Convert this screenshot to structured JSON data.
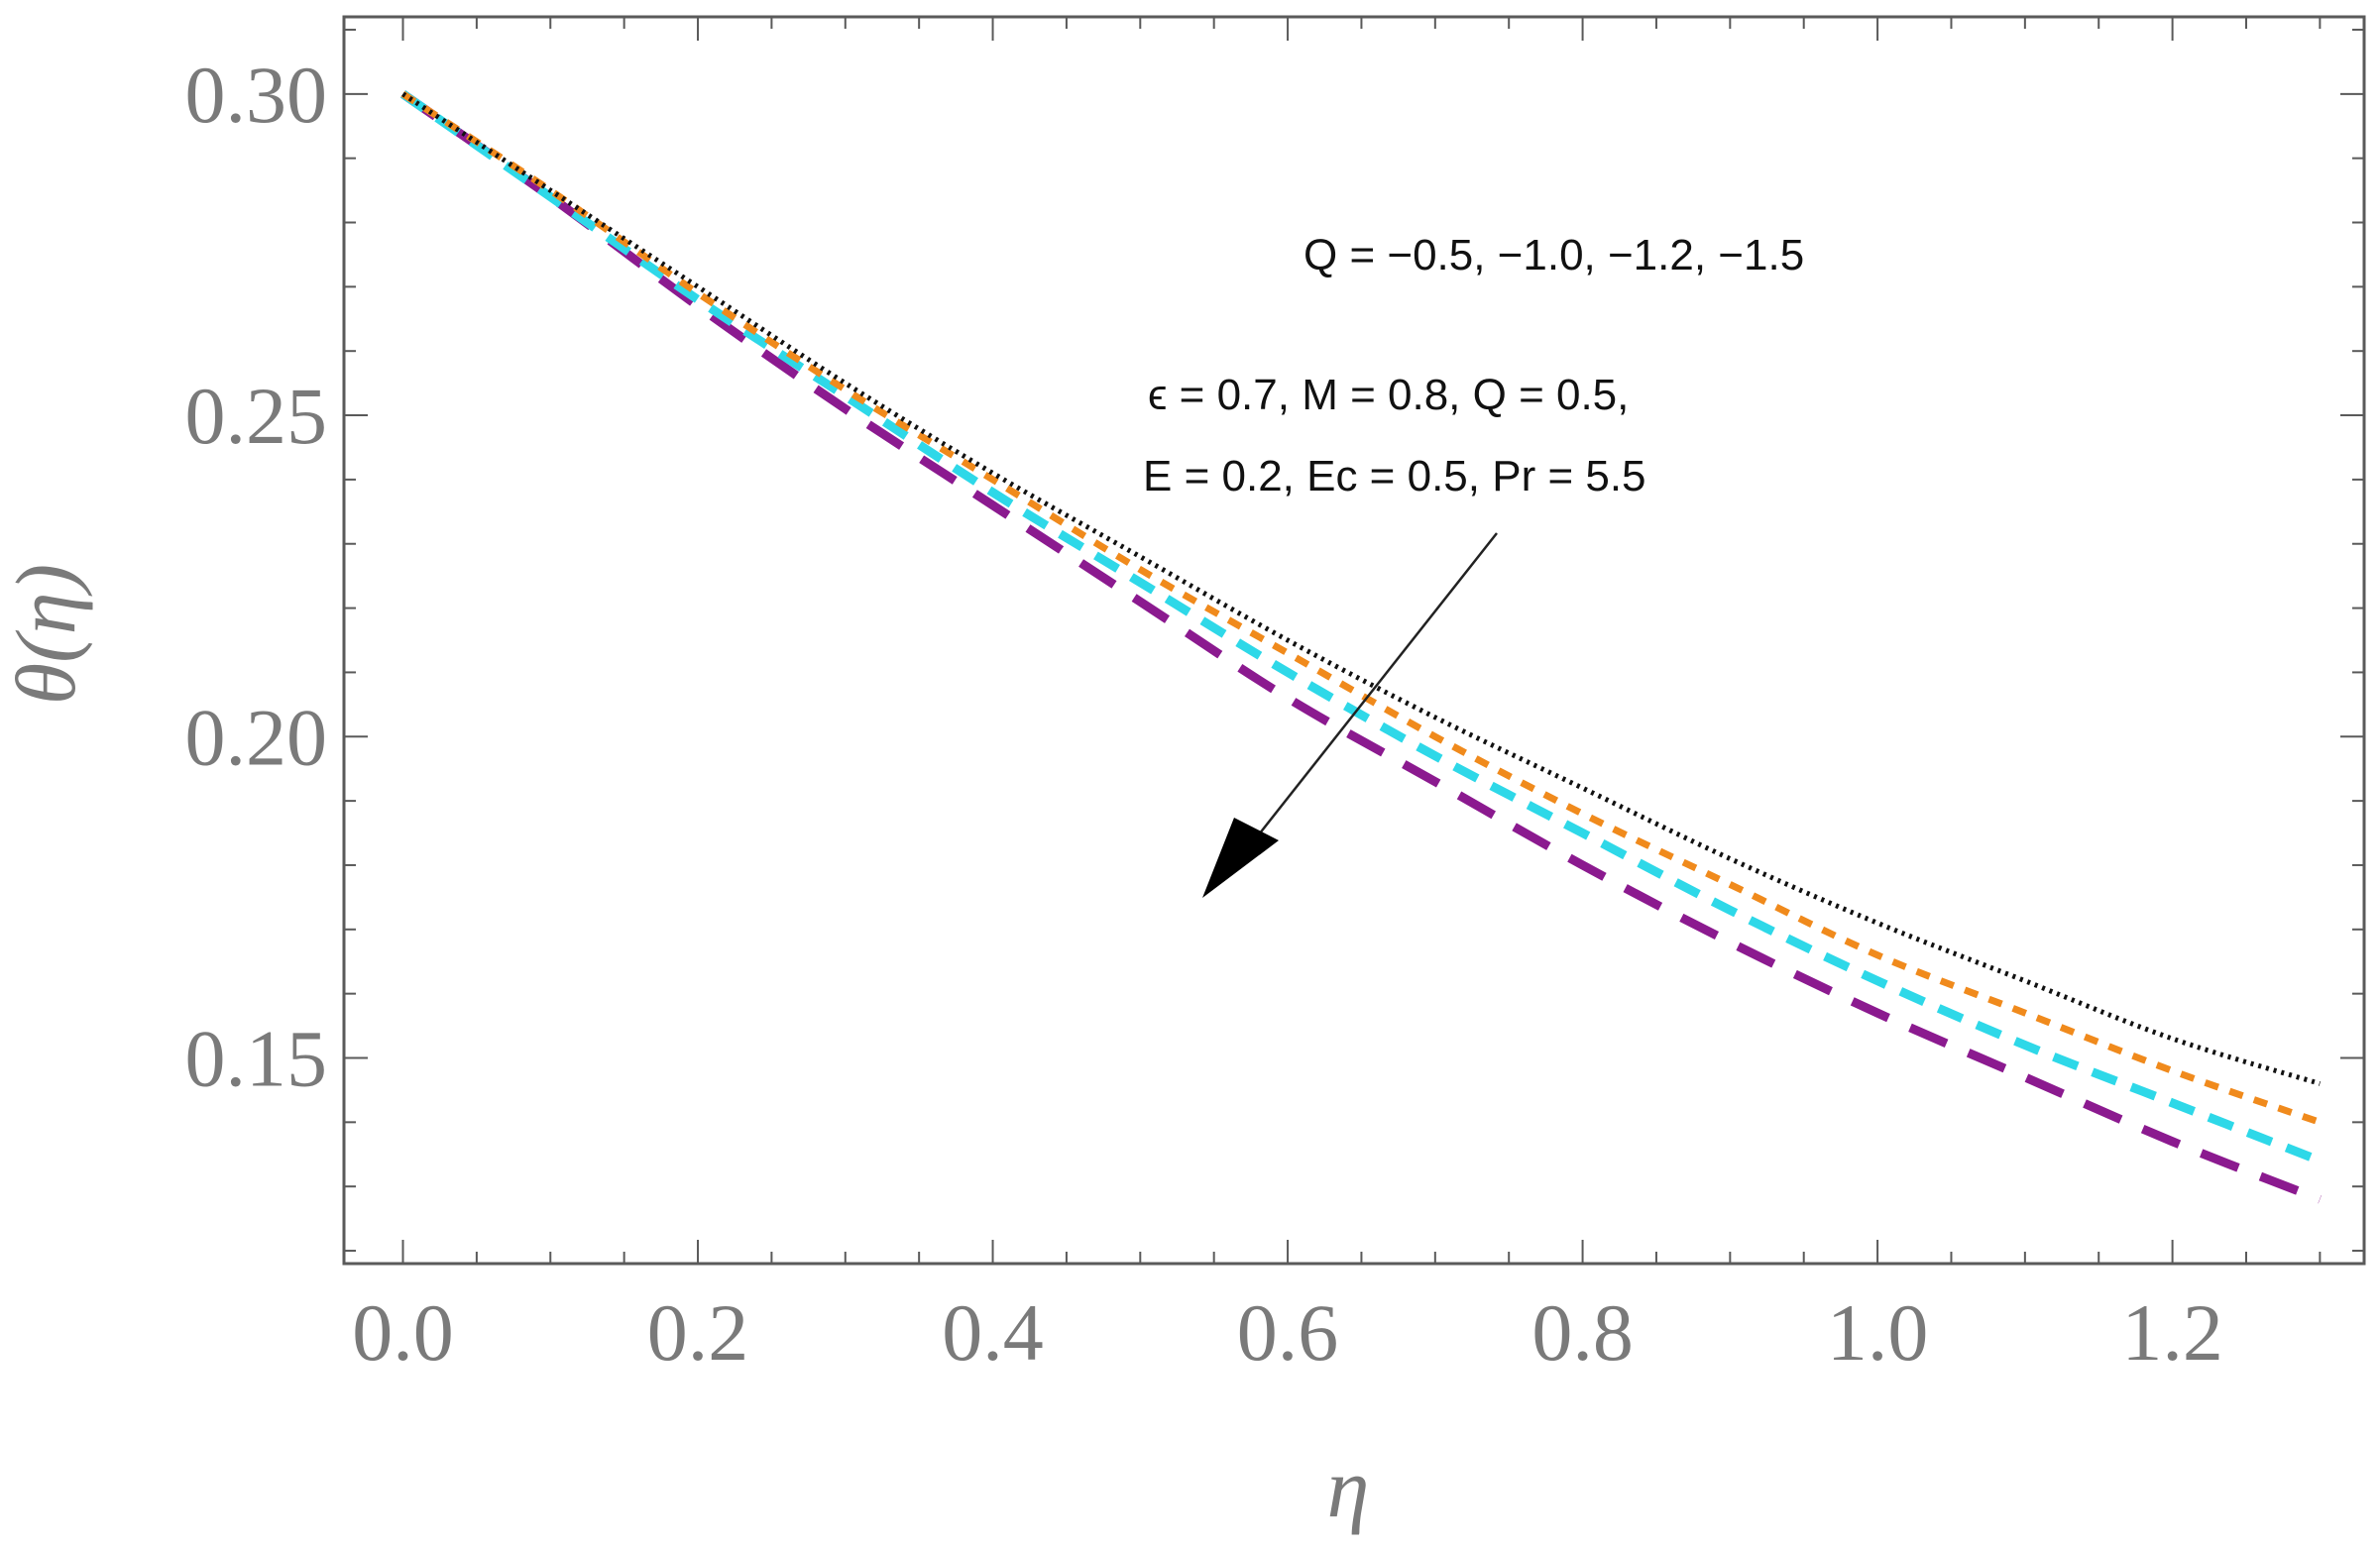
{
  "chart_data": {
    "type": "line",
    "title": "",
    "xlabel": "η",
    "ylabel": "θ(η)",
    "xlim": [
      -0.04,
      1.33
    ],
    "ylim": [
      0.118,
      0.312
    ],
    "xticks": [
      0.0,
      0.2,
      0.4,
      0.6,
      0.8,
      1.0,
      1.2
    ],
    "xtick_labels": [
      "0.0",
      "0.2",
      "0.4",
      "0.6",
      "0.8",
      "1.0",
      "1.2"
    ],
    "yticks": [
      0.15,
      0.2,
      0.25,
      0.3
    ],
    "ytick_labels": [
      "0.15",
      "0.20",
      "0.25",
      "0.30"
    ],
    "grid": false,
    "annotations": {
      "q_values": "Q = −0.5, −1.0, −1.2, −1.5",
      "params_line1": "ϵ = 0.7,  M = 0.8, Q = 0.5,",
      "params_line2": "E = 0.2, Ec = 0.5, Pr = 5.5"
    },
    "series": [
      {
        "color": "#111111",
        "style": "dotted",
        "x": [
          0.0,
          0.1,
          0.2,
          0.3,
          0.4,
          0.5,
          0.6,
          0.7,
          0.8,
          0.9,
          1.0,
          1.1,
          1.2,
          1.3
        ],
        "values": [
          0.3,
          0.285,
          0.27,
          0.255,
          0.241,
          0.228,
          0.215,
          0.203,
          0.192,
          0.181,
          0.171,
          0.162,
          0.153,
          0.146
        ]
      },
      {
        "color": "#f08a1c",
        "style": "short-dash",
        "x": [
          0.0,
          0.1,
          0.2,
          0.3,
          0.4,
          0.5,
          0.6,
          0.7,
          0.8,
          0.9,
          1.0,
          1.1,
          1.2,
          1.3
        ],
        "values": [
          0.3,
          0.285,
          0.269,
          0.254,
          0.24,
          0.226,
          0.213,
          0.2,
          0.188,
          0.177,
          0.166,
          0.157,
          0.148,
          0.14
        ]
      },
      {
        "color": "#2ed8e8",
        "style": "medium-dash",
        "x": [
          0.0,
          0.1,
          0.2,
          0.3,
          0.4,
          0.5,
          0.6,
          0.7,
          0.8,
          0.9,
          1.0,
          1.1,
          1.2,
          1.3
        ],
        "values": [
          0.3,
          0.284,
          0.268,
          0.253,
          0.238,
          0.224,
          0.21,
          0.197,
          0.185,
          0.173,
          0.162,
          0.152,
          0.143,
          0.134
        ]
      },
      {
        "color": "#8b1a8f",
        "style": "long-dash",
        "x": [
          0.0,
          0.1,
          0.2,
          0.3,
          0.4,
          0.5,
          0.6,
          0.7,
          0.8,
          0.9,
          1.0,
          1.1,
          1.2,
          1.3
        ],
        "values": [
          0.3,
          0.284,
          0.267,
          0.251,
          0.236,
          0.221,
          0.206,
          0.193,
          0.18,
          0.168,
          0.157,
          0.147,
          0.137,
          0.128
        ]
      }
    ]
  }
}
